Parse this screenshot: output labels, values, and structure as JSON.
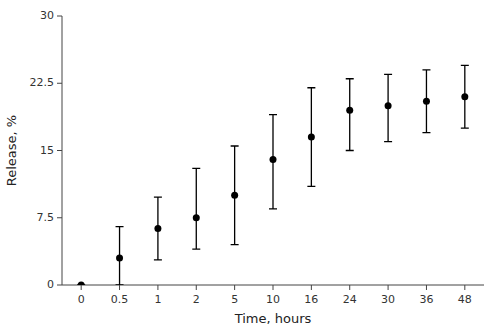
{
  "chart_data": {
    "type": "errorbar",
    "xlabel": "Time, hours",
    "ylabel": "Release, %",
    "categories": [
      "0",
      "0.5",
      "1",
      "2",
      "5",
      "10",
      "16",
      "24",
      "30",
      "36",
      "48"
    ],
    "values": [
      0.0,
      3.0,
      6.3,
      7.5,
      10.0,
      14.0,
      16.5,
      19.5,
      20.0,
      20.5,
      21.0
    ],
    "error_low": [
      0.0,
      3.0,
      3.5,
      3.5,
      5.5,
      5.5,
      5.5,
      4.5,
      4.0,
      3.5,
      3.5
    ],
    "error_high": [
      0.0,
      3.5,
      3.5,
      5.5,
      5.5,
      5.0,
      5.5,
      3.5,
      3.5,
      3.5,
      3.5
    ],
    "ylim": [
      0,
      30
    ],
    "yticks": [
      0,
      7.5,
      15,
      22.5,
      30
    ],
    "color": "#000000",
    "marker": "circle",
    "grid": false
  }
}
